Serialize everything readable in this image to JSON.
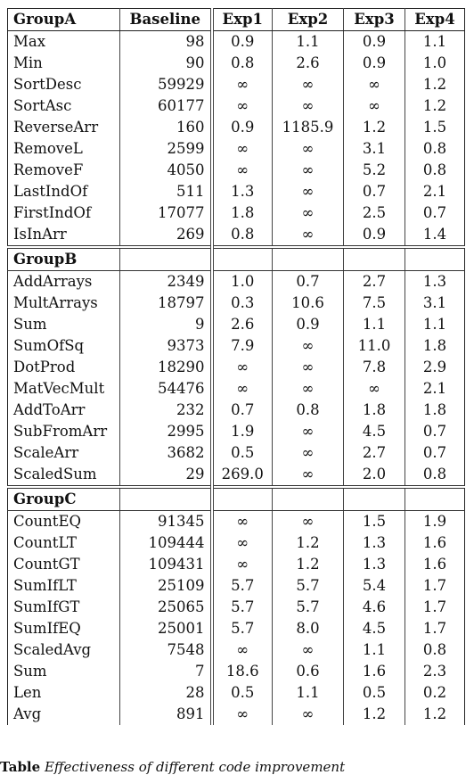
{
  "table": {
    "headers": [
      "GroupA",
      "Baseline",
      "Exp1",
      "Exp2",
      "Exp3",
      "Exp4"
    ],
    "groups": [
      {
        "name": "GroupA",
        "rows": [
          [
            "Max",
            "98",
            "0.9",
            "1.1",
            "0.9",
            "1.1"
          ],
          [
            "Min",
            "90",
            "0.8",
            "2.6",
            "0.9",
            "1.0"
          ],
          [
            "SortDesc",
            "59929",
            "∞",
            "∞",
            "∞",
            "1.2"
          ],
          [
            "SortAsc",
            "60177",
            "∞",
            "∞",
            "∞",
            "1.2"
          ],
          [
            "ReverseArr",
            "160",
            "0.9",
            "1185.9",
            "1.2",
            "1.5"
          ],
          [
            "RemoveL",
            "2599",
            "∞",
            "∞",
            "3.1",
            "0.8"
          ],
          [
            "RemoveF",
            "4050",
            "∞",
            "∞",
            "5.2",
            "0.8"
          ],
          [
            "LastIndOf",
            "511",
            "1.3",
            "∞",
            "0.7",
            "2.1"
          ],
          [
            "FirstIndOf",
            "17077",
            "1.8",
            "∞",
            "2.5",
            "0.7"
          ],
          [
            "IsInArr",
            "269",
            "0.8",
            "∞",
            "0.9",
            "1.4"
          ]
        ]
      },
      {
        "name": "GroupB",
        "rows": [
          [
            "AddArrays",
            "2349",
            "1.0",
            "0.7",
            "2.7",
            "1.3"
          ],
          [
            "MultArrays",
            "18797",
            "0.3",
            "10.6",
            "7.5",
            "3.1"
          ],
          [
            "Sum",
            "9",
            "2.6",
            "0.9",
            "1.1",
            "1.1"
          ],
          [
            "SumOfSq",
            "9373",
            "7.9",
            "∞",
            "11.0",
            "1.8"
          ],
          [
            "DotProd",
            "18290",
            "∞",
            "∞",
            "7.8",
            "2.9"
          ],
          [
            "MatVecMult",
            "54476",
            "∞",
            "∞",
            "∞",
            "2.1"
          ],
          [
            "AddToArr",
            "232",
            "0.7",
            "0.8",
            "1.8",
            "1.8"
          ],
          [
            "SubFromArr",
            "2995",
            "1.9",
            "∞",
            "4.5",
            "0.7"
          ],
          [
            "ScaleArr",
            "3682",
            "0.5",
            "∞",
            "2.7",
            "0.7"
          ],
          [
            "ScaledSum",
            "29",
            "269.0",
            "∞",
            "2.0",
            "0.8"
          ]
        ]
      },
      {
        "name": "GroupC",
        "rows": [
          [
            "CountEQ",
            "91345",
            "∞",
            "∞",
            "1.5",
            "1.9"
          ],
          [
            "CountLT",
            "109444",
            "∞",
            "1.2",
            "1.3",
            "1.6"
          ],
          [
            "CountGT",
            "109431",
            "∞",
            "1.2",
            "1.3",
            "1.6"
          ],
          [
            "SumIfLT",
            "25109",
            "5.7",
            "5.7",
            "5.4",
            "1.7"
          ],
          [
            "SumIfGT",
            "25065",
            "5.7",
            "5.7",
            "4.6",
            "1.7"
          ],
          [
            "SumIfEQ",
            "25001",
            "5.7",
            "8.0",
            "4.5",
            "1.7"
          ],
          [
            "ScaledAvg",
            "7548",
            "∞",
            "∞",
            "1.1",
            "0.8"
          ],
          [
            "Sum",
            "7",
            "18.6",
            "0.6",
            "1.6",
            "2.3"
          ],
          [
            "Len",
            "28",
            "0.5",
            "1.1",
            "0.5",
            "0.2"
          ],
          [
            "Avg",
            "891",
            "∞",
            "∞",
            "1.2",
            "1.2"
          ]
        ]
      }
    ]
  },
  "caption": {
    "label": "Table",
    "text": "Effectiveness of different code improvement"
  }
}
